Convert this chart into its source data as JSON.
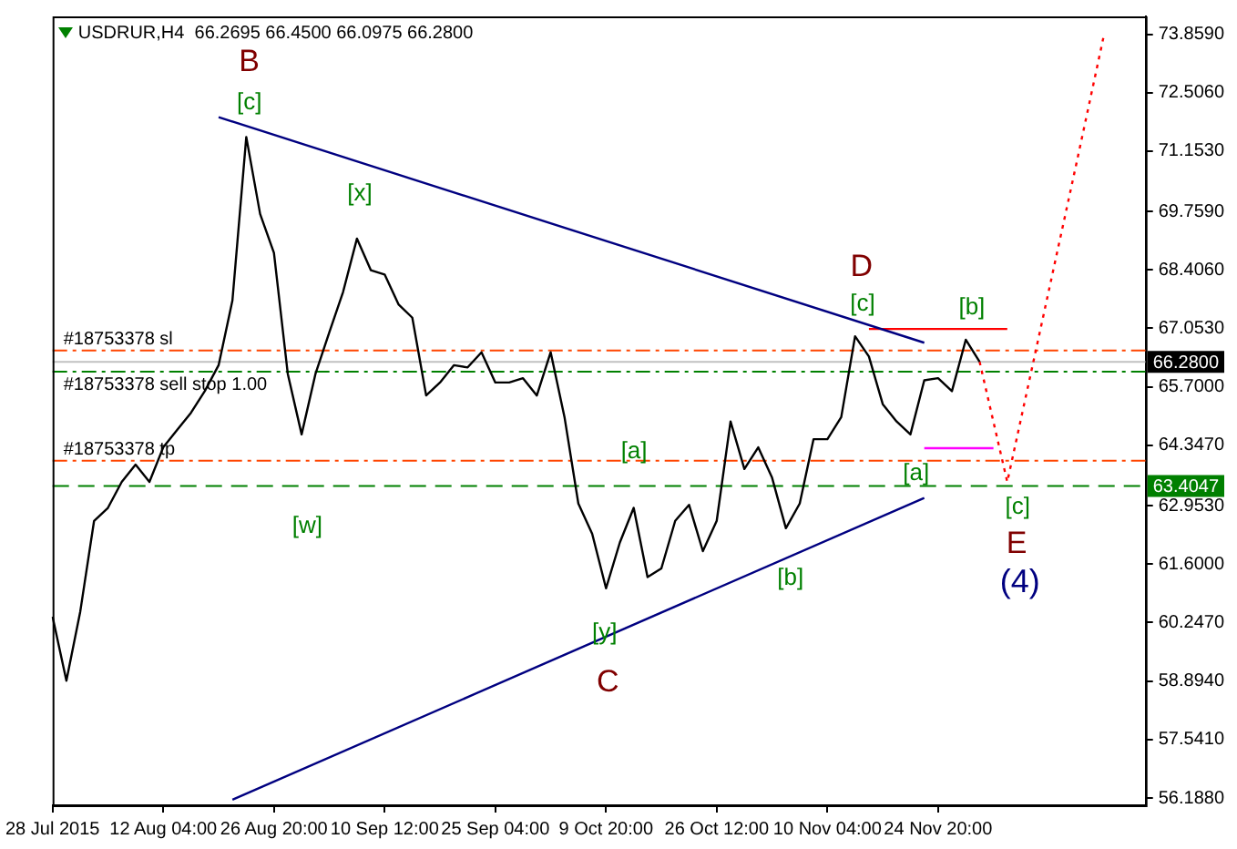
{
  "chart_data": {
    "type": "line",
    "title": "USDRUR,H4  66.2695 66.4500 66.0975 66.2800",
    "categories": [
      "28 Jul 2015",
      null,
      null,
      null,
      null,
      null,
      null,
      null,
      "12 Aug 04:00",
      null,
      null,
      null,
      null,
      null,
      null,
      null,
      "26 Aug 20:00",
      null,
      null,
      null,
      null,
      null,
      null,
      null,
      "10 Sep 12:00",
      null,
      null,
      null,
      null,
      null,
      null,
      null,
      "25 Sep 04:00",
      null,
      null,
      null,
      null,
      null,
      null,
      null,
      "9 Oct 20:00",
      null,
      null,
      null,
      null,
      null,
      null,
      null,
      "26 Oct 12:00",
      null,
      null,
      null,
      null,
      null,
      null,
      null,
      "10 Nov 04:00",
      null,
      null,
      null,
      null,
      null,
      null,
      null,
      "24 Nov 20:00",
      null,
      null,
      null,
      null,
      null,
      null,
      null,
      null,
      null,
      null,
      null,
      null,
      null,
      null,
      null
    ],
    "ylim": [
      56.02,
      74.27
    ],
    "yticks": [
      {
        "value": 73.859,
        "label": "73.8590"
      },
      {
        "value": 72.506,
        "label": "72.5060"
      },
      {
        "value": 71.153,
        "label": "71.1530"
      },
      {
        "value": 69.759,
        "label": "69.7590"
      },
      {
        "value": 68.406,
        "label": "68.4060"
      },
      {
        "value": 67.053,
        "label": "67.0530"
      },
      {
        "value": 65.7,
        "label": "65.7000"
      },
      {
        "value": 64.347,
        "label": "64.3470"
      },
      {
        "value": 62.953,
        "label": "62.9530"
      },
      {
        "value": 61.6,
        "label": "61.6000"
      },
      {
        "value": 60.247,
        "label": "60.2470"
      },
      {
        "value": 58.894,
        "label": "58.8940"
      },
      {
        "value": 57.541,
        "label": "57.5410"
      },
      {
        "value": 56.188,
        "label": "56.1880"
      }
    ],
    "grid": false,
    "legend": false,
    "series": [
      {
        "color": "#000000",
        "values": [
          60.38,
          58.9,
          60.5,
          62.6,
          62.9,
          63.5,
          63.9,
          63.5,
          64.3,
          64.7,
          65.1,
          65.6,
          66.2,
          67.7,
          71.48,
          69.7,
          68.8,
          66.0,
          64.6,
          66.0,
          66.96,
          67.9,
          69.13,
          68.4,
          68.3,
          67.61,
          67.3,
          65.5,
          65.8,
          66.2,
          66.15,
          66.5,
          65.8,
          65.8,
          65.9,
          65.5,
          66.5,
          65.0,
          63.0,
          62.3,
          61.04,
          62.1,
          62.9,
          61.3,
          61.5,
          62.6,
          62.97,
          61.9,
          62.6,
          64.9,
          63.8,
          64.3,
          63.6,
          62.43,
          63.0,
          64.49,
          64.49,
          65.0,
          66.87,
          66.4,
          65.3,
          64.9,
          64.6,
          65.85,
          65.9,
          65.6,
          66.79,
          66.28,
          null,
          null,
          null,
          null,
          null,
          null,
          null,
          null,
          null,
          null,
          null,
          null
        ]
      },
      {
        "color": "#000080",
        "values": [
          null,
          null,
          null,
          null,
          null,
          null,
          null,
          null,
          null,
          null,
          null,
          null,
          71.94,
          null,
          null,
          null,
          null,
          null,
          null,
          null,
          null,
          null,
          null,
          null,
          null,
          null,
          null,
          null,
          null,
          null,
          null,
          null,
          null,
          null,
          null,
          null,
          null,
          null,
          null,
          null,
          null,
          null,
          null,
          null,
          null,
          null,
          null,
          null,
          null,
          null,
          null,
          null,
          null,
          null,
          null,
          null,
          null,
          null,
          null,
          null,
          null,
          null,
          null,
          66.72,
          null,
          null,
          null,
          null,
          null,
          null,
          null,
          null,
          null,
          null,
          null,
          null,
          null,
          null,
          null,
          null
        ]
      },
      {
        "color": "#000080",
        "values": [
          null,
          null,
          null,
          null,
          null,
          null,
          null,
          null,
          null,
          null,
          null,
          null,
          null,
          56.15,
          null,
          null,
          null,
          null,
          null,
          null,
          null,
          null,
          null,
          null,
          null,
          null,
          null,
          null,
          null,
          null,
          null,
          null,
          null,
          null,
          null,
          null,
          null,
          null,
          null,
          null,
          null,
          null,
          null,
          null,
          null,
          null,
          null,
          null,
          null,
          null,
          null,
          null,
          null,
          null,
          null,
          null,
          null,
          null,
          null,
          null,
          null,
          null,
          null,
          63.13,
          null,
          null,
          null,
          null,
          null,
          null,
          null,
          null,
          null,
          null,
          null,
          null,
          null,
          null,
          null,
          null
        ]
      },
      {
        "color": "#ff0000",
        "values": [
          null,
          null,
          null,
          null,
          null,
          null,
          null,
          null,
          null,
          null,
          null,
          null,
          null,
          null,
          null,
          null,
          null,
          null,
          null,
          null,
          null,
          null,
          null,
          null,
          null,
          null,
          null,
          null,
          null,
          null,
          null,
          null,
          null,
          null,
          null,
          null,
          null,
          null,
          null,
          null,
          null,
          null,
          null,
          null,
          null,
          null,
          null,
          null,
          null,
          null,
          null,
          null,
          null,
          null,
          null,
          null,
          null,
          null,
          null,
          67.04,
          null,
          null,
          null,
          null,
          null,
          null,
          null,
          null,
          null,
          67.04,
          null,
          null,
          null,
          null,
          null,
          null,
          null,
          null,
          null,
          null
        ]
      },
      {
        "color": "#ff00ff",
        "values": [
          null,
          null,
          null,
          null,
          null,
          null,
          null,
          null,
          null,
          null,
          null,
          null,
          null,
          null,
          null,
          null,
          null,
          null,
          null,
          null,
          null,
          null,
          null,
          null,
          null,
          null,
          null,
          null,
          null,
          null,
          null,
          null,
          null,
          null,
          null,
          null,
          null,
          null,
          null,
          null,
          null,
          null,
          null,
          null,
          null,
          null,
          null,
          null,
          null,
          null,
          null,
          null,
          null,
          null,
          null,
          null,
          null,
          null,
          null,
          null,
          null,
          null,
          null,
          64.28,
          null,
          null,
          null,
          null,
          64.28,
          null,
          null,
          null,
          null,
          null,
          null,
          null,
          null,
          null,
          null,
          null
        ]
      },
      {
        "color": "#ff0000",
        "line_style": "dotted",
        "values": [
          null,
          null,
          null,
          null,
          null,
          null,
          null,
          null,
          null,
          null,
          null,
          null,
          null,
          null,
          null,
          null,
          null,
          null,
          null,
          null,
          null,
          null,
          null,
          null,
          null,
          null,
          null,
          null,
          null,
          null,
          null,
          null,
          null,
          null,
          null,
          null,
          null,
          null,
          null,
          null,
          null,
          null,
          null,
          null,
          null,
          null,
          null,
          null,
          null,
          null,
          null,
          null,
          null,
          null,
          null,
          null,
          null,
          null,
          null,
          null,
          null,
          null,
          null,
          null,
          null,
          null,
          null,
          66.28,
          null,
          63.5,
          null,
          null,
          null,
          null,
          70.87,
          null,
          73.86,
          null,
          null,
          null
        ]
      }
    ],
    "ref_lines": [
      {
        "axis": "y",
        "value": 66.54,
        "label": "#18753378 sl",
        "color": "#ff4500",
        "line_style": "dashdot"
      },
      {
        "axis": "y",
        "value": 66.05,
        "label": "#18753378 sell stop 1.00",
        "color": "#008000",
        "line_style": "dashdot"
      },
      {
        "axis": "y",
        "value": 63.99,
        "label": "#18753378 tp",
        "color": "#ff4500",
        "line_style": "dashdot"
      },
      {
        "axis": "y",
        "value": 66.28,
        "label": "66.2800",
        "color": "#c0c0c0",
        "line_style": "solid"
      },
      {
        "axis": "y",
        "value": 63.4047,
        "label": "63.4047",
        "color": "#008000",
        "line_style": "dashed"
      }
    ],
    "annotations": [
      "B",
      "[c]",
      "[x]",
      "[w]",
      "[y]",
      "C",
      "[a]",
      "[b]",
      "D",
      "[c]",
      "[b]",
      "[a]",
      "[c]",
      "E",
      "(4)"
    ]
  }
}
